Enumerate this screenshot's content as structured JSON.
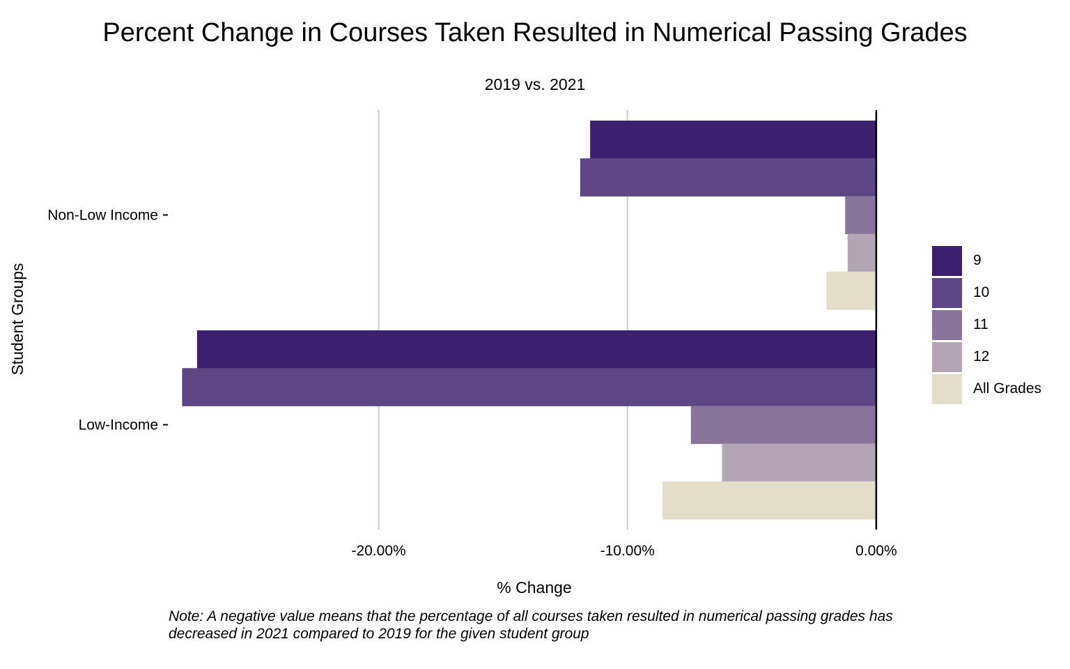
{
  "chart_data": {
    "type": "bar",
    "orientation": "horizontal",
    "title": "Percent Change in Courses Taken Resulted in Numerical Passing Grades",
    "subtitle": "2019 vs. 2021",
    "xlabel": "% Change",
    "ylabel": "Student Groups",
    "categories": [
      "Non-Low Income",
      "Low-Income"
    ],
    "series": [
      {
        "name": "9",
        "color": "#3c1f6f",
        "values": [
          -11.5,
          -27.3
        ]
      },
      {
        "name": "10",
        "color": "#5c4784",
        "values": [
          -11.9,
          -27.9
        ]
      },
      {
        "name": "11",
        "color": "#89749c",
        "values": [
          -1.25,
          -7.45
        ]
      },
      {
        "name": "12",
        "color": "#b4a5b4",
        "values": [
          -1.15,
          -6.2
        ]
      },
      {
        "name": "All Grades",
        "color": "#e3dec9",
        "values": [
          -2.0,
          -8.6
        ]
      }
    ],
    "xlim": [
      -28.5,
      0.9
    ],
    "xticks": [
      {
        "value": -20,
        "label": "-20.00%"
      },
      {
        "value": -10,
        "label": "-10.00%"
      },
      {
        "value": 0,
        "label": "0.00%"
      }
    ],
    "grid": "vertical major",
    "legend_position": "right",
    "note": "Note: A negative value means that the percentage of all courses taken resulted in numerical passing grades has decreased in 2021 compared to 2019 for the given student group"
  }
}
